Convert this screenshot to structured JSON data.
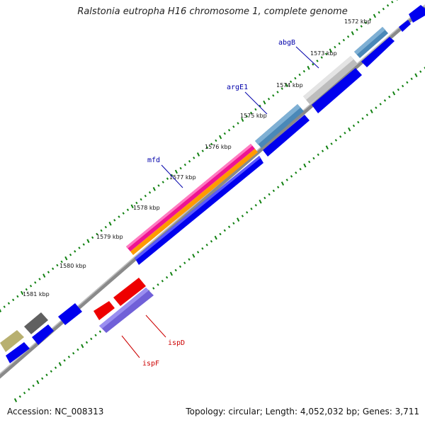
{
  "title": "Ralstonia eutropha H16 chromosome 1, complete genome",
  "footer": {
    "accession": "Accession: NC_008313",
    "topology": "Topology: circular; Length: 4,052,032 bp; Genes: 3,711"
  },
  "ticks": [
    "1572 kbp",
    "1573 kbp",
    "1574 kbp",
    "1575 kbp",
    "1576 kbp",
    "1577 kbp",
    "1578 kbp",
    "1579 kbp",
    "1580 kbp",
    "1581 kbp"
  ],
  "gene_labels": [
    {
      "text": "abgB",
      "color": "#0000aa"
    },
    {
      "text": "argE1",
      "color": "#0000aa"
    },
    {
      "text": "mfd",
      "color": "#0000aa"
    },
    {
      "text": "ispD",
      "color": "#cc0000"
    },
    {
      "text": "ispF",
      "color": "#cc0000"
    }
  ],
  "colors": {
    "backbone": "#777777",
    "forward_cds": "#0000ee",
    "reverse_cds": "#ee0000",
    "tick_green": "#108010",
    "steel": "#4a88b8",
    "silver": "#bdbdbd",
    "magenta": "#ee1493",
    "orange": "#ff9a00",
    "purple": "#7060d8",
    "dark_gray": "#606060",
    "khaki": "#b8b070"
  }
}
